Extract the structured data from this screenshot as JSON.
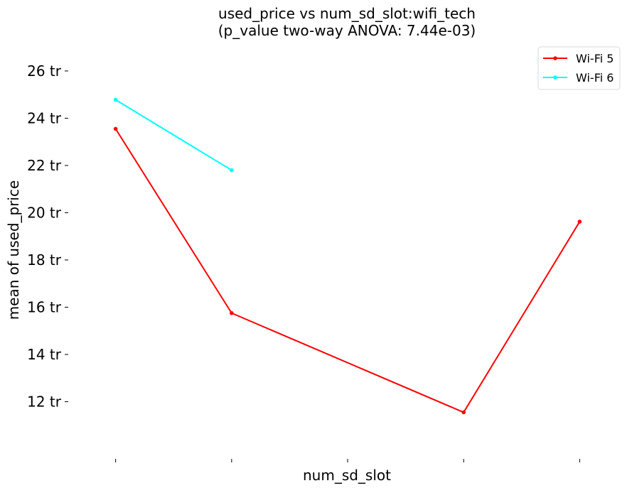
{
  "chart_data": {
    "type": "line",
    "title": "used_price vs num_sd_slot:wifi_tech",
    "subtitle": "(p_value two-way ANOVA: 7.44e-03)",
    "xlabel": "num_sd_slot",
    "ylabel": "mean of used_price",
    "x": [
      0,
      1,
      2,
      3,
      4
    ],
    "x_tick_labels": [
      "",
      "",
      "",
      "",
      ""
    ],
    "y_ticks": [
      12,
      14,
      16,
      18,
      20,
      22,
      24,
      26
    ],
    "y_tick_labels": [
      "12 tr",
      "14 tr",
      "16 tr",
      "18 tr",
      "20 tr",
      "22 tr",
      "24 tr",
      "26 tr"
    ],
    "ylim": [
      10.3,
      27.2
    ],
    "xlim": [
      -0.2,
      4.2
    ],
    "grid": false,
    "legend_position": "top-right",
    "series": [
      {
        "name": "Wi-Fi 5",
        "color": "#ff0000",
        "points": [
          {
            "x": 0,
            "y": 23.55
          },
          {
            "x": 1,
            "y": 15.75
          },
          {
            "x": 3,
            "y": 11.55
          },
          {
            "x": 4,
            "y": 19.62
          }
        ]
      },
      {
        "name": "Wi-Fi 6",
        "color": "#00ffff",
        "points": [
          {
            "x": 0,
            "y": 24.78
          },
          {
            "x": 1,
            "y": 21.8
          }
        ]
      }
    ]
  }
}
